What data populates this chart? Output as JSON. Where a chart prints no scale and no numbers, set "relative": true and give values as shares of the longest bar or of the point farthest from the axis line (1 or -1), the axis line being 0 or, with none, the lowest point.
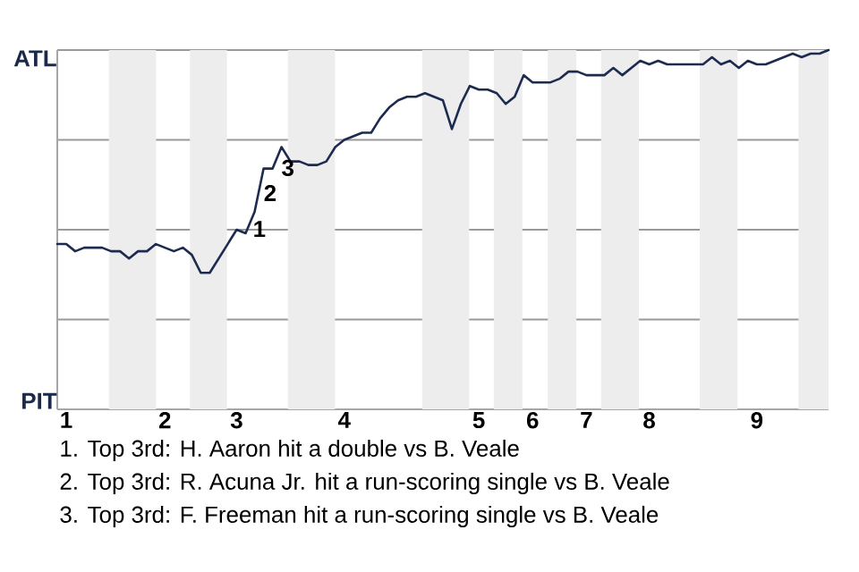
{
  "chart_data": {
    "type": "line",
    "color": "#1c2b4f",
    "relative": true,
    "categories": [
      null,
      "1",
      null,
      null,
      null,
      null,
      null,
      null,
      null,
      null,
      null,
      null,
      "2",
      null,
      null,
      null,
      null,
      null,
      null,
      null,
      "3",
      null,
      null,
      null,
      null,
      null,
      null,
      null,
      null,
      null,
      null,
      null,
      "4",
      null,
      null,
      null,
      null,
      null,
      null,
      null,
      null,
      null,
      null,
      null,
      null,
      null,
      null,
      "5",
      null,
      null,
      null,
      null,
      null,
      "6",
      null,
      null,
      null,
      null,
      null,
      "7",
      null,
      null,
      null,
      null,
      null,
      null,
      "8",
      null,
      null,
      null,
      null,
      null,
      null,
      null,
      null,
      null,
      null,
      null,
      "9",
      null,
      null,
      null,
      null,
      null,
      null,
      null,
      null
    ],
    "values": [
      0.46,
      0.46,
      0.44,
      0.45,
      0.45,
      0.45,
      0.44,
      0.44,
      0.42,
      0.44,
      0.44,
      0.46,
      0.45,
      0.44,
      0.45,
      0.43,
      0.38,
      0.38,
      0.42,
      0.46,
      0.5,
      0.49,
      0.55,
      0.67,
      0.67,
      0.73,
      0.69,
      0.69,
      0.68,
      0.68,
      0.69,
      0.73,
      0.75,
      0.76,
      0.77,
      0.77,
      0.81,
      0.84,
      0.86,
      0.87,
      0.87,
      0.88,
      0.87,
      0.86,
      0.78,
      0.85,
      0.9,
      0.89,
      0.89,
      0.88,
      0.85,
      0.87,
      0.93,
      0.91,
      0.91,
      0.91,
      0.92,
      0.94,
      0.94,
      0.93,
      0.93,
      0.93,
      0.95,
      0.93,
      0.95,
      0.97,
      0.96,
      0.97,
      0.96,
      0.96,
      0.96,
      0.96,
      0.96,
      0.98,
      0.96,
      0.97,
      0.95,
      0.97,
      0.96,
      0.96,
      0.97,
      0.98,
      0.99,
      0.98,
      0.99,
      0.99,
      1.0
    ],
    "grid": "y",
    "annotations": [
      "ATL",
      "PIT",
      "1",
      "2",
      "3",
      "1. Top 3rd: H. Aaron hit a double vs B. Veale",
      "2. Top 3rd: R. Acuna Jr. hit a run-scoring single vs B. Veale",
      "3. Top 3rd: F. Freeman hit a run-scoring single vs B. Veale"
    ]
  }
}
